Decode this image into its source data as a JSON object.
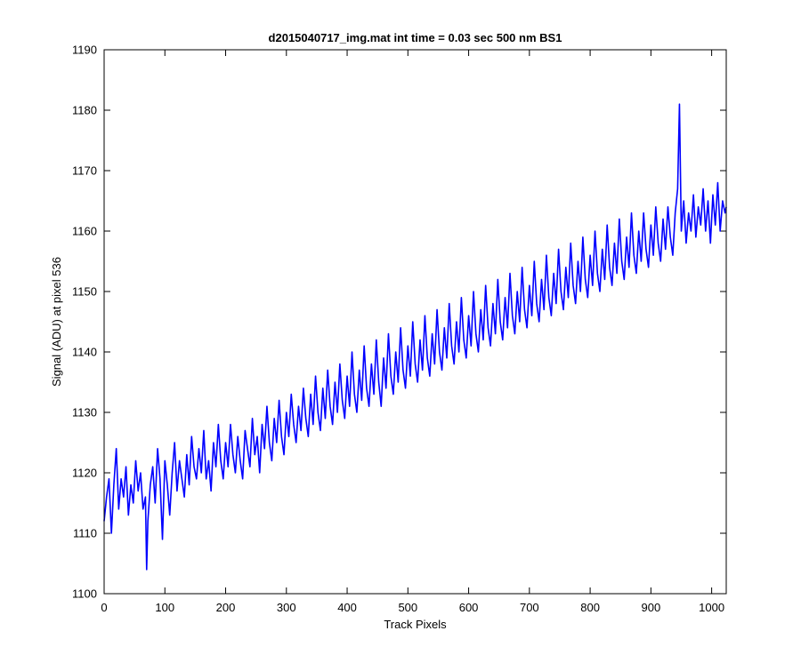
{
  "chart_data": {
    "type": "line",
    "title": "d2015040717_img.mat int time = 0.03 sec  500 nm BS1",
    "xlabel": "Track Pixels",
    "ylabel": "Signal (ADU) at pixel 536",
    "xlim": [
      0,
      1024
    ],
    "ylim": [
      1100,
      1190
    ],
    "xticks": [
      0,
      100,
      200,
      300,
      400,
      500,
      600,
      700,
      800,
      900,
      1000
    ],
    "yticks": [
      1100,
      1110,
      1120,
      1130,
      1140,
      1150,
      1160,
      1170,
      1180,
      1190
    ],
    "grid": false,
    "line_color": "#0000ff",
    "series": [
      {
        "points": [
          [
            0,
            1112
          ],
          [
            4,
            1116
          ],
          [
            8,
            1119
          ],
          [
            12,
            1110
          ],
          [
            16,
            1118
          ],
          [
            20,
            1124
          ],
          [
            24,
            1114
          ],
          [
            28,
            1119
          ],
          [
            32,
            1116
          ],
          [
            36,
            1121
          ],
          [
            40,
            1113
          ],
          [
            44,
            1118
          ],
          [
            48,
            1115
          ],
          [
            52,
            1122
          ],
          [
            56,
            1117
          ],
          [
            60,
            1120
          ],
          [
            64,
            1114
          ],
          [
            68,
            1116
          ],
          [
            70,
            1104
          ],
          [
            72,
            1112
          ],
          [
            76,
            1118
          ],
          [
            80,
            1121
          ],
          [
            84,
            1115
          ],
          [
            88,
            1124
          ],
          [
            92,
            1119
          ],
          [
            96,
            1109
          ],
          [
            100,
            1122
          ],
          [
            104,
            1118
          ],
          [
            108,
            1113
          ],
          [
            112,
            1120
          ],
          [
            116,
            1125
          ],
          [
            120,
            1117
          ],
          [
            124,
            1122
          ],
          [
            128,
            1119
          ],
          [
            132,
            1116
          ],
          [
            136,
            1123
          ],
          [
            140,
            1118
          ],
          [
            144,
            1126
          ],
          [
            148,
            1121
          ],
          [
            152,
            1119
          ],
          [
            156,
            1124
          ],
          [
            160,
            1120
          ],
          [
            164,
            1127
          ],
          [
            168,
            1119
          ],
          [
            172,
            1122
          ],
          [
            176,
            1117
          ],
          [
            180,
            1125
          ],
          [
            184,
            1121
          ],
          [
            188,
            1128
          ],
          [
            192,
            1122
          ],
          [
            196,
            1119
          ],
          [
            200,
            1125
          ],
          [
            204,
            1121
          ],
          [
            208,
            1128
          ],
          [
            212,
            1123
          ],
          [
            216,
            1120
          ],
          [
            220,
            1126
          ],
          [
            224,
            1122
          ],
          [
            228,
            1119
          ],
          [
            232,
            1127
          ],
          [
            236,
            1124
          ],
          [
            240,
            1121
          ],
          [
            244,
            1129
          ],
          [
            248,
            1123
          ],
          [
            252,
            1126
          ],
          [
            256,
            1120
          ],
          [
            260,
            1128
          ],
          [
            264,
            1124
          ],
          [
            268,
            1131
          ],
          [
            272,
            1125
          ],
          [
            276,
            1122
          ],
          [
            280,
            1129
          ],
          [
            284,
            1125
          ],
          [
            288,
            1132
          ],
          [
            292,
            1126
          ],
          [
            296,
            1123
          ],
          [
            300,
            1130
          ],
          [
            304,
            1126
          ],
          [
            308,
            1133
          ],
          [
            312,
            1128
          ],
          [
            316,
            1125
          ],
          [
            320,
            1131
          ],
          [
            324,
            1127
          ],
          [
            328,
            1134
          ],
          [
            332,
            1129
          ],
          [
            336,
            1126
          ],
          [
            340,
            1133
          ],
          [
            344,
            1128
          ],
          [
            348,
            1136
          ],
          [
            352,
            1130
          ],
          [
            356,
            1127
          ],
          [
            360,
            1134
          ],
          [
            364,
            1129
          ],
          [
            368,
            1137
          ],
          [
            372,
            1131
          ],
          [
            376,
            1128
          ],
          [
            380,
            1135
          ],
          [
            384,
            1130
          ],
          [
            388,
            1138
          ],
          [
            392,
            1132
          ],
          [
            396,
            1129
          ],
          [
            400,
            1136
          ],
          [
            404,
            1131
          ],
          [
            408,
            1140
          ],
          [
            412,
            1133
          ],
          [
            416,
            1130
          ],
          [
            420,
            1137
          ],
          [
            424,
            1132
          ],
          [
            428,
            1141
          ],
          [
            432,
            1134
          ],
          [
            436,
            1131
          ],
          [
            440,
            1138
          ],
          [
            444,
            1133
          ],
          [
            448,
            1142
          ],
          [
            452,
            1135
          ],
          [
            456,
            1131
          ],
          [
            460,
            1139
          ],
          [
            464,
            1134
          ],
          [
            468,
            1143
          ],
          [
            472,
            1136
          ],
          [
            476,
            1133
          ],
          [
            480,
            1140
          ],
          [
            484,
            1135
          ],
          [
            488,
            1144
          ],
          [
            492,
            1137
          ],
          [
            496,
            1134
          ],
          [
            500,
            1141
          ],
          [
            504,
            1136
          ],
          [
            508,
            1145
          ],
          [
            512,
            1138
          ],
          [
            516,
            1135
          ],
          [
            520,
            1142
          ],
          [
            524,
            1137
          ],
          [
            528,
            1146
          ],
          [
            532,
            1139
          ],
          [
            536,
            1136
          ],
          [
            540,
            1143
          ],
          [
            544,
            1138
          ],
          [
            548,
            1147
          ],
          [
            552,
            1140
          ],
          [
            556,
            1137
          ],
          [
            560,
            1144
          ],
          [
            564,
            1139
          ],
          [
            568,
            1148
          ],
          [
            572,
            1141
          ],
          [
            576,
            1138
          ],
          [
            580,
            1145
          ],
          [
            584,
            1140
          ],
          [
            588,
            1149
          ],
          [
            592,
            1142
          ],
          [
            596,
            1139
          ],
          [
            600,
            1146
          ],
          [
            604,
            1141
          ],
          [
            608,
            1150
          ],
          [
            612,
            1143
          ],
          [
            616,
            1140
          ],
          [
            620,
            1147
          ],
          [
            624,
            1142
          ],
          [
            628,
            1151
          ],
          [
            632,
            1144
          ],
          [
            636,
            1141
          ],
          [
            640,
            1148
          ],
          [
            644,
            1143
          ],
          [
            648,
            1152
          ],
          [
            652,
            1145
          ],
          [
            656,
            1142
          ],
          [
            660,
            1149
          ],
          [
            664,
            1144
          ],
          [
            668,
            1153
          ],
          [
            672,
            1146
          ],
          [
            676,
            1143
          ],
          [
            680,
            1150
          ],
          [
            684,
            1145
          ],
          [
            688,
            1154
          ],
          [
            692,
            1147
          ],
          [
            696,
            1144
          ],
          [
            700,
            1151
          ],
          [
            704,
            1146
          ],
          [
            708,
            1155
          ],
          [
            712,
            1148
          ],
          [
            716,
            1145
          ],
          [
            720,
            1152
          ],
          [
            724,
            1147
          ],
          [
            728,
            1156
          ],
          [
            732,
            1149
          ],
          [
            736,
            1146
          ],
          [
            740,
            1153
          ],
          [
            744,
            1148
          ],
          [
            748,
            1157
          ],
          [
            752,
            1150
          ],
          [
            756,
            1147
          ],
          [
            760,
            1154
          ],
          [
            764,
            1149
          ],
          [
            768,
            1158
          ],
          [
            772,
            1151
          ],
          [
            776,
            1148
          ],
          [
            780,
            1155
          ],
          [
            784,
            1150
          ],
          [
            788,
            1159
          ],
          [
            792,
            1152
          ],
          [
            796,
            1149
          ],
          [
            800,
            1156
          ],
          [
            804,
            1151
          ],
          [
            808,
            1160
          ],
          [
            812,
            1153
          ],
          [
            816,
            1150
          ],
          [
            820,
            1157
          ],
          [
            824,
            1152
          ],
          [
            828,
            1161
          ],
          [
            832,
            1154
          ],
          [
            836,
            1151
          ],
          [
            840,
            1158
          ],
          [
            844,
            1153
          ],
          [
            848,
            1162
          ],
          [
            852,
            1155
          ],
          [
            856,
            1152
          ],
          [
            860,
            1159
          ],
          [
            864,
            1154
          ],
          [
            868,
            1163
          ],
          [
            872,
            1156
          ],
          [
            876,
            1153
          ],
          [
            880,
            1160
          ],
          [
            884,
            1155
          ],
          [
            888,
            1163
          ],
          [
            892,
            1157
          ],
          [
            896,
            1154
          ],
          [
            900,
            1161
          ],
          [
            904,
            1156
          ],
          [
            908,
            1164
          ],
          [
            912,
            1158
          ],
          [
            916,
            1155
          ],
          [
            920,
            1162
          ],
          [
            924,
            1157
          ],
          [
            928,
            1164
          ],
          [
            932,
            1159
          ],
          [
            936,
            1156
          ],
          [
            940,
            1163
          ],
          [
            944,
            1167
          ],
          [
            947,
            1181
          ],
          [
            950,
            1160
          ],
          [
            954,
            1165
          ],
          [
            958,
            1158
          ],
          [
            962,
            1163
          ],
          [
            966,
            1160
          ],
          [
            970,
            1166
          ],
          [
            974,
            1159
          ],
          [
            978,
            1164
          ],
          [
            982,
            1161
          ],
          [
            986,
            1167
          ],
          [
            990,
            1160
          ],
          [
            994,
            1165
          ],
          [
            998,
            1158
          ],
          [
            1002,
            1166
          ],
          [
            1006,
            1161
          ],
          [
            1010,
            1168
          ],
          [
            1014,
            1160
          ],
          [
            1018,
            1165
          ],
          [
            1022,
            1163
          ],
          [
            1024,
            1164
          ]
        ]
      }
    ]
  }
}
